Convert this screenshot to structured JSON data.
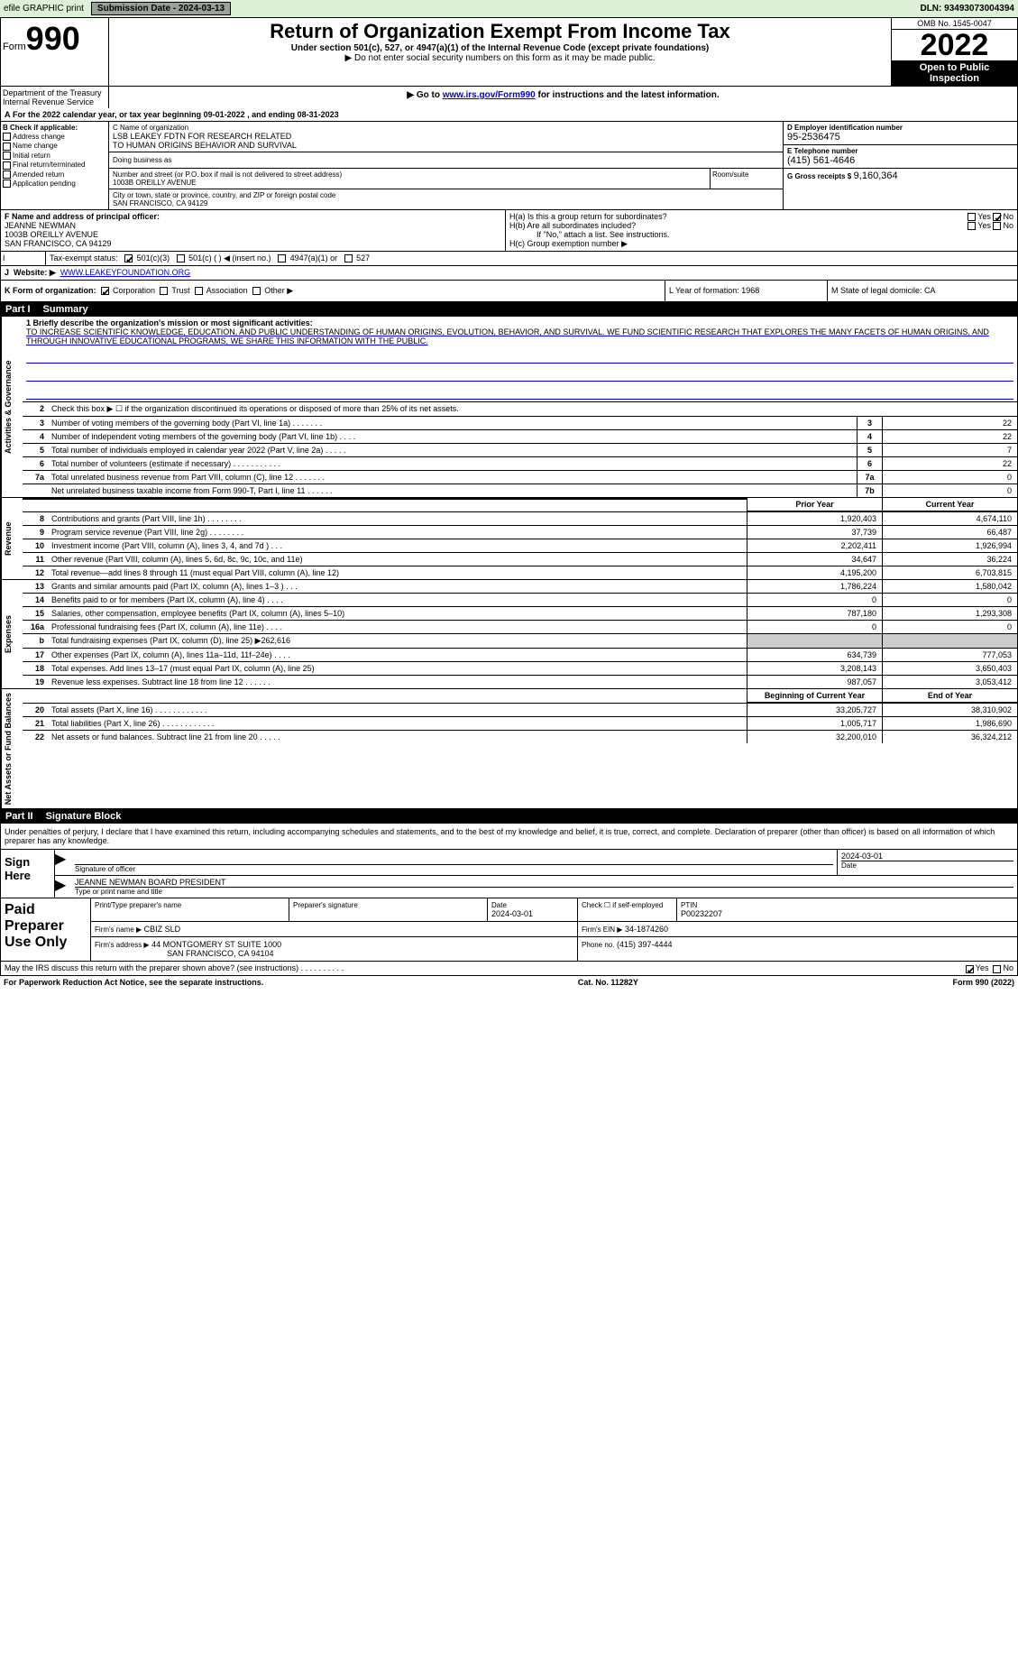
{
  "topbar": {
    "efile": "efile GRAPHIC print",
    "submission_label": "Submission Date - 2024-03-13",
    "dln_label": "DLN: 93493073004394"
  },
  "header": {
    "form_word": "Form",
    "form_number": "990",
    "title": "Return of Organization Exempt From Income Tax",
    "subtitle": "Under section 501(c), 527, or 4947(a)(1) of the Internal Revenue Code (except private foundations)",
    "note1": "▶ Do not enter social security numbers on this form as it may be made public.",
    "note2_pre": "▶ Go to ",
    "note2_link": "www.irs.gov/Form990",
    "note2_post": " for instructions and the latest information.",
    "omb": "OMB No. 1545-0047",
    "year": "2022",
    "open": "Open to Public Inspection",
    "dept": "Department of the Treasury Internal Revenue Service"
  },
  "line_a": "For the 2022 calendar year, or tax year beginning 09-01-2022    , and ending 08-31-2023",
  "box_b": {
    "title": "B Check if applicable:",
    "opts": [
      "Address change",
      "Name change",
      "Initial return",
      "Final return/terminated",
      "Amended return",
      "Application pending"
    ]
  },
  "box_c": {
    "lab": "C Name of organization",
    "name1": "LSB LEAKEY FDTN FOR RESEARCH RELATED",
    "name2": "TO HUMAN ORIGINS BEHAVIOR AND SURVIVAL",
    "dba": "Doing business as",
    "street_lab": "Number and street (or P.O. box if mail is not delivered to street address)",
    "street": "1003B OREILLY AVENUE",
    "rs_lab": "Room/suite",
    "city_lab": "City or town, state or province, country, and ZIP or foreign postal code",
    "city": "SAN FRANCISCO, CA  94129"
  },
  "box_d": {
    "lab": "D Employer identification number",
    "val": "95-2536475"
  },
  "box_e": {
    "lab": "E Telephone number",
    "val": "(415) 561-4646"
  },
  "box_g": {
    "lab": "G Gross receipts $",
    "val": "9,160,364"
  },
  "box_f": {
    "lab": "F Name and address of principal officer:",
    "name": "JEANNE NEWMAN",
    "street": "1003B OREILLY AVENUE",
    "city": "SAN FRANCISCO, CA  94129"
  },
  "box_h": {
    "a": "H(a)  Is this a group return for subordinates?",
    "a_yes": "Yes",
    "a_no": "No",
    "b": "H(b)  Are all subordinates included?",
    "b_yes": "Yes",
    "b_no": "No",
    "b_note": "If \"No,\" attach a list. See instructions.",
    "c": "H(c)  Group exemption number ▶"
  },
  "box_i": {
    "lab": "I",
    "txt": "Tax-exempt status:",
    "opts": [
      "501(c)(3)",
      "501(c) (  ) ◀ (insert no.)",
      "4947(a)(1) or",
      "527"
    ]
  },
  "box_j": {
    "lab": "J",
    "pre": "Website: ▶",
    "url": "WWW.LEAKEYFOUNDATION.ORG"
  },
  "box_k": {
    "txt": "K Form of organization:",
    "opts": [
      "Corporation",
      "Trust",
      "Association",
      "Other ▶"
    ]
  },
  "box_l": {
    "txt": "L Year of formation: 1968"
  },
  "box_m": {
    "txt": "M State of legal domicile: CA"
  },
  "part1": {
    "num": "Part I",
    "title": "Summary"
  },
  "mission": {
    "lab": "1  Briefly describe the organization's mission or most significant activities:",
    "txt": "TO INCREASE SCIENTIFIC KNOWLEDGE, EDUCATION, AND PUBLIC UNDERSTANDING OF HUMAN ORIGINS, EVOLUTION, BEHAVIOR, AND SURVIVAL. WE FUND SCIENTIFIC RESEARCH THAT EXPLORES THE MANY FACETS OF HUMAN ORIGINS, AND THROUGH INNOVATIVE EDUCATIONAL PROGRAMS, WE SHARE THIS INFORMATION WITH THE PUBLIC."
  },
  "gov_lines": [
    {
      "n": "2",
      "t": "Check this box ▶ ☐  if the organization discontinued its operations or disposed of more than 25% of its net assets.",
      "box": "",
      "v": ""
    },
    {
      "n": "3",
      "t": "Number of voting members of the governing body (Part VI, line 1a)   .    .    .    .    .    .    .",
      "box": "3",
      "v": "22"
    },
    {
      "n": "4",
      "t": "Number of independent voting members of the governing body (Part VI, line 1b)   .    .    .    .",
      "box": "4",
      "v": "22"
    },
    {
      "n": "5",
      "t": "Total number of individuals employed in calendar year 2022 (Part V, line 2a)   .    .    .    .    .",
      "box": "5",
      "v": "7"
    },
    {
      "n": "6",
      "t": "Total number of volunteers (estimate if necessary)    .    .    .    .    .    .    .    .    .    .    .",
      "box": "6",
      "v": "22"
    },
    {
      "n": "7a",
      "t": "Total unrelated business revenue from Part VIII, column (C), line 12   .    .    .    .    .    .    .",
      "box": "7a",
      "v": "0"
    },
    {
      "n": "",
      "t": "Net unrelated business taxable income from Form 990-T, Part I, line 11   .    .    .    .    .    .",
      "box": "7b",
      "v": "0"
    }
  ],
  "rev_hdr": {
    "prior": "Prior Year",
    "current": "Current Year"
  },
  "rev_lines": [
    {
      "n": "8",
      "t": "Contributions and grants (Part VIII, line 1h)    .    .    .    .    .    .    .    .",
      "p": "1,920,403",
      "c": "4,674,110"
    },
    {
      "n": "9",
      "t": "Program service revenue (Part VIII, line 2g)    .    .    .    .    .    .    .    .",
      "p": "37,739",
      "c": "66,487"
    },
    {
      "n": "10",
      "t": "Investment income (Part VIII, column (A), lines 3, 4, and 7d )    .    .    .",
      "p": "2,202,411",
      "c": "1,926,994"
    },
    {
      "n": "11",
      "t": "Other revenue (Part VIII, column (A), lines 5, 6d, 8c, 9c, 10c, and 11e)",
      "p": "34,647",
      "c": "36,224"
    },
    {
      "n": "12",
      "t": "Total revenue—add lines 8 through 11 (must equal Part VIII, column (A), line 12)",
      "p": "4,195,200",
      "c": "6,703,815"
    }
  ],
  "exp_lines": [
    {
      "n": "13",
      "t": "Grants and similar amounts paid (Part IX, column (A), lines 1–3 )   .    .    .",
      "p": "1,786,224",
      "c": "1,580,042"
    },
    {
      "n": "14",
      "t": "Benefits paid to or for members (Part IX, column (A), line 4)   .    .    .    .",
      "p": "0",
      "c": "0"
    },
    {
      "n": "15",
      "t": "Salaries, other compensation, employee benefits (Part IX, column (A), lines 5–10)",
      "p": "787,180",
      "c": "1,293,308"
    },
    {
      "n": "16a",
      "t": "Professional fundraising fees (Part IX, column (A), line 11e)   .    .    .    .",
      "p": "0",
      "c": "0"
    },
    {
      "n": "b",
      "t": "Total fundraising expenses (Part IX, column (D), line 25) ▶262,616",
      "p": "",
      "c": "",
      "gray": true
    },
    {
      "n": "17",
      "t": "Other expenses (Part IX, column (A), lines 11a–11d, 11f–24e)   .    .    .    .",
      "p": "634,739",
      "c": "777,053"
    },
    {
      "n": "18",
      "t": "Total expenses. Add lines 13–17 (must equal Part IX, column (A), line 25)",
      "p": "3,208,143",
      "c": "3,650,403"
    },
    {
      "n": "19",
      "t": "Revenue less expenses. Subtract line 18 from line 12   .    .    .    .    .    .",
      "p": "987,057",
      "c": "3,053,412"
    }
  ],
  "na_hdr": {
    "prior": "Beginning of Current Year",
    "current": "End of Year"
  },
  "na_lines": [
    {
      "n": "20",
      "t": "Total assets (Part X, line 16)   .    .    .    .    .    .    .    .    .    .    .    .",
      "p": "33,205,727",
      "c": "38,310,902"
    },
    {
      "n": "21",
      "t": "Total liabilities (Part X, line 26)   .    .    .    .    .    .    .    .    .    .    .    .",
      "p": "1,005,717",
      "c": "1,986,690"
    },
    {
      "n": "22",
      "t": "Net assets or fund balances. Subtract line 21 from line 20   .    .    .    .    .",
      "p": "32,200,010",
      "c": "36,324,212"
    }
  ],
  "vtabs": {
    "gov": "Activities & Governance",
    "rev": "Revenue",
    "exp": "Expenses",
    "na": "Net Assets or Fund Balances"
  },
  "part2": {
    "num": "Part II",
    "title": "Signature Block"
  },
  "penalties": "Under penalties of perjury, I declare that I have examined this return, including accompanying schedules and statements, and to the best of my knowledge and belief, it is true, correct, and complete. Declaration of preparer (other than officer) is based on all information of which preparer has any knowledge.",
  "sign": {
    "lab": "Sign Here",
    "sig_of": "Signature of officer",
    "date": "2024-03-01",
    "date_lab": "Date",
    "name": "JEANNE NEWMAN  BOARD PRESIDENT",
    "name_lab": "Type or print name and title"
  },
  "paid": {
    "lab": "Paid Preparer Use Only",
    "h1": "Print/Type preparer's name",
    "h2": "Preparer's signature",
    "h3": "Date",
    "h3v": "2024-03-01",
    "h4": "Check ☐ if self-employed",
    "h5": "PTIN",
    "h5v": "P00232207",
    "firm_lab": "Firm's name    ▶",
    "firm": "CBIZ SLD",
    "ein_lab": "Firm's EIN ▶",
    "ein": "34-1874260",
    "addr_lab": "Firm's address ▶",
    "addr1": "44 MONTGOMERY ST SUITE 1000",
    "addr2": "SAN FRANCISCO, CA  94104",
    "phone_lab": "Phone no.",
    "phone": "(415) 397-4444"
  },
  "discuss": {
    "txt": "May the IRS discuss this return with the preparer shown above? (see instructions)    .    .    .    .    .    .    .    .    .    .",
    "yes": "Yes",
    "no": "No"
  },
  "paperwork": {
    "left": "For Paperwork Reduction Act Notice, see the separate instructions.",
    "mid": "Cat. No. 11282Y",
    "right": "Form 990 (2022)"
  }
}
